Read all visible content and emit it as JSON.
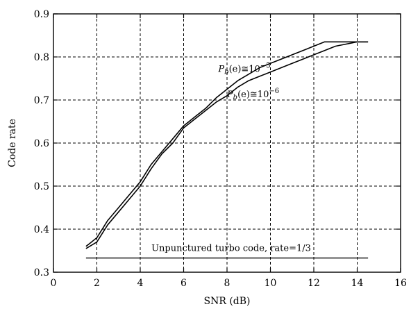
{
  "chart_data": {
    "type": "line",
    "title": "",
    "xlabel": "SNR (dB)",
    "ylabel": "Code rate",
    "xlim": [
      0,
      16
    ],
    "ylim": [
      0.3,
      0.9
    ],
    "x_ticks": [
      0,
      2,
      4,
      6,
      8,
      10,
      12,
      14,
      16
    ],
    "y_ticks": [
      0.3,
      0.4,
      0.5,
      0.6,
      0.7,
      0.8,
      0.9
    ],
    "x_tick_labels": [
      "0",
      "2",
      "4",
      "6",
      "8",
      "10",
      "12",
      "14",
      "16"
    ],
    "y_tick_labels": [
      "0.3",
      "0.4",
      "0.5",
      "0.6",
      "0.7",
      "0.8",
      "0.9"
    ],
    "grid": true,
    "legend": "none",
    "series": [
      {
        "name": "",
        "points": [
          [
            1.5,
            0.36
          ],
          [
            2.0,
            0.38
          ],
          [
            2.5,
            0.42
          ],
          [
            3.0,
            0.45
          ],
          [
            3.5,
            0.48
          ],
          [
            4.0,
            0.51
          ],
          [
            4.5,
            0.55
          ],
          [
            5.0,
            0.58
          ],
          [
            5.5,
            0.61
          ],
          [
            6.0,
            0.64
          ],
          [
            6.5,
            0.66
          ],
          [
            7.0,
            0.68
          ],
          [
            7.5,
            0.705
          ],
          [
            8.0,
            0.725
          ],
          [
            8.5,
            0.745
          ],
          [
            9.0,
            0.76
          ],
          [
            9.5,
            0.775
          ],
          [
            10.0,
            0.785
          ],
          [
            10.5,
            0.795
          ],
          [
            11.0,
            0.805
          ],
          [
            11.5,
            0.815
          ],
          [
            12.0,
            0.825
          ],
          [
            12.5,
            0.835
          ],
          [
            13.0,
            0.835
          ],
          [
            14.0,
            0.835
          ],
          [
            14.5,
            0.835
          ]
        ]
      },
      {
        "name": "",
        "points": [
          [
            1.5,
            0.355
          ],
          [
            2.0,
            0.37
          ],
          [
            2.5,
            0.41
          ],
          [
            3.0,
            0.44
          ],
          [
            3.5,
            0.47
          ],
          [
            4.0,
            0.5
          ],
          [
            4.5,
            0.54
          ],
          [
            5.0,
            0.575
          ],
          [
            5.5,
            0.6
          ],
          [
            6.0,
            0.635
          ],
          [
            6.5,
            0.655
          ],
          [
            7.0,
            0.675
          ],
          [
            7.5,
            0.695
          ],
          [
            8.0,
            0.71
          ],
          [
            8.5,
            0.73
          ],
          [
            9.0,
            0.745
          ],
          [
            9.5,
            0.755
          ],
          [
            10.0,
            0.765
          ],
          [
            10.5,
            0.775
          ],
          [
            11.0,
            0.785
          ],
          [
            11.5,
            0.795
          ],
          [
            12.0,
            0.805
          ],
          [
            12.5,
            0.815
          ],
          [
            13.0,
            0.825
          ],
          [
            14.0,
            0.835
          ],
          [
            14.5,
            0.835
          ]
        ]
      }
    ],
    "reference_line": {
      "label": "Unpunctured turbo code, rate=1/3",
      "y": 0.333,
      "x_start": 1.5,
      "x_end": 14.5
    },
    "annotations": [
      {
        "prefix": "P",
        "subscript": "b",
        "middle": "(e)≅10",
        "superscript": "−5",
        "anchor_x": 8.8,
        "anchor_y": 0.772
      },
      {
        "prefix": "P",
        "subscript": "b",
        "middle": "(e)≅10",
        "superscript": "−6",
        "anchor_x": 9.2,
        "anchor_y": 0.713
      }
    ]
  }
}
